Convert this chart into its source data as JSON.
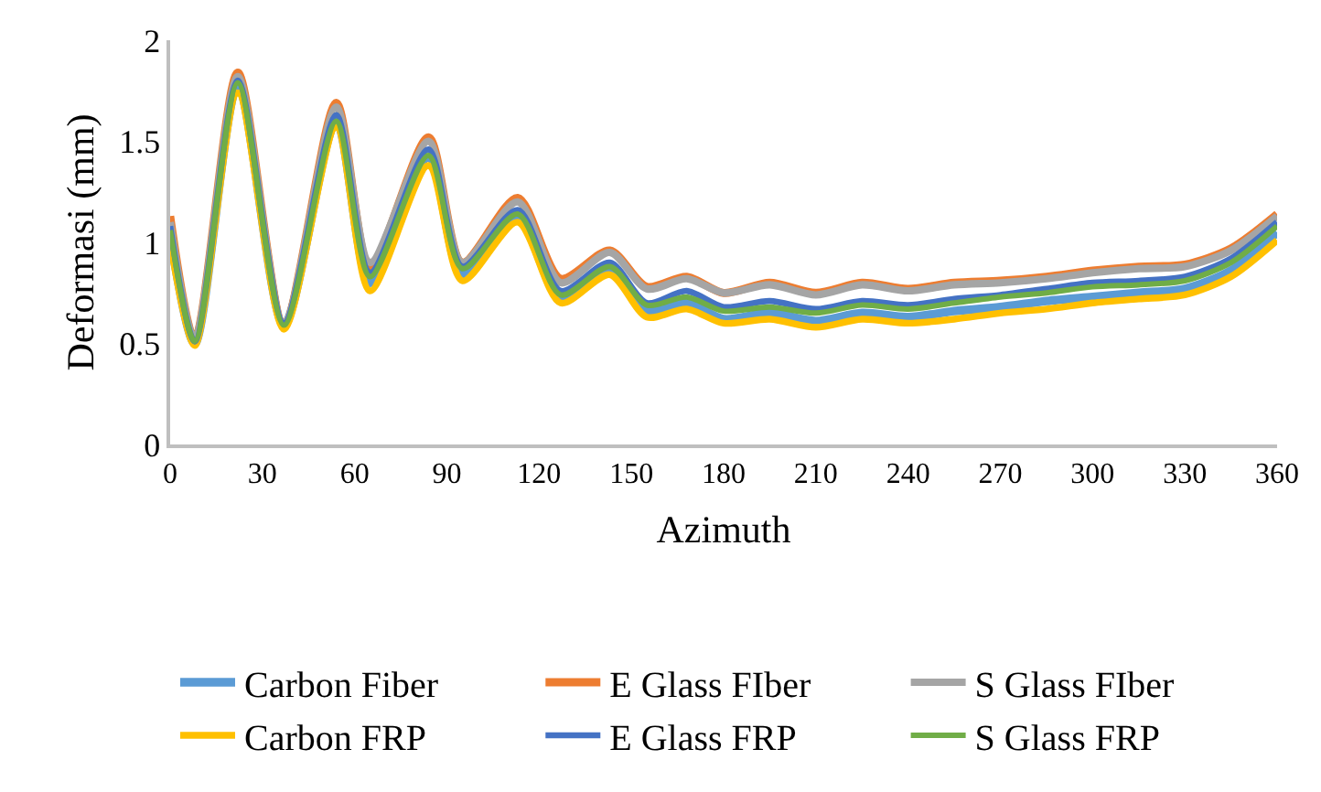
{
  "chart_data": {
    "type": "line",
    "xlabel": "Azimuth",
    "ylabel": "Deformasi (mm)",
    "x": [
      0,
      8,
      22,
      37,
      54,
      65,
      84,
      95,
      113,
      127,
      143,
      155,
      168,
      180,
      195,
      210,
      225,
      240,
      255,
      270,
      285,
      300,
      315,
      330,
      345,
      360
    ],
    "xlim": [
      0,
      360
    ],
    "xticks": [
      0,
      30,
      60,
      90,
      120,
      150,
      180,
      210,
      240,
      270,
      300,
      330,
      360
    ],
    "ylim": [
      0,
      2
    ],
    "yticks": [
      0,
      0.5,
      1,
      1.5,
      2
    ],
    "grid": false,
    "legend": "bottom",
    "marker": "none",
    "line_style": "solid",
    "series": [
      {
        "name": "Carbon Fiber",
        "color": "#5b9bd5",
        "values": [
          1.04,
          0.5,
          1.78,
          0.59,
          1.6,
          0.8,
          1.42,
          0.84,
          1.12,
          0.72,
          0.86,
          0.66,
          0.7,
          0.62,
          0.65,
          0.61,
          0.65,
          0.63,
          0.66,
          0.68,
          0.71,
          0.73,
          0.75,
          0.77,
          0.86,
          1.05
        ]
      },
      {
        "name": "E Glass FIber",
        "color": "#ed7d31",
        "values": [
          1.13,
          0.52,
          1.84,
          0.6,
          1.69,
          0.88,
          1.52,
          0.9,
          1.22,
          0.82,
          0.96,
          0.78,
          0.83,
          0.75,
          0.8,
          0.75,
          0.8,
          0.77,
          0.8,
          0.81,
          0.83,
          0.86,
          0.88,
          0.89,
          0.97,
          1.14
        ]
      },
      {
        "name": "S Glass FIber",
        "color": "#a5a5a5",
        "values": [
          1.1,
          0.52,
          1.82,
          0.6,
          1.67,
          0.9,
          1.5,
          0.9,
          1.2,
          0.8,
          0.95,
          0.77,
          0.82,
          0.75,
          0.79,
          0.74,
          0.79,
          0.76,
          0.79,
          0.8,
          0.82,
          0.85,
          0.87,
          0.88,
          0.96,
          1.13
        ]
      },
      {
        "name": "Carbon FRP",
        "color": "#ffc000",
        "values": [
          1.0,
          0.49,
          1.74,
          0.57,
          1.57,
          0.76,
          1.38,
          0.81,
          1.1,
          0.7,
          0.84,
          0.63,
          0.67,
          0.6,
          0.62,
          0.58,
          0.62,
          0.6,
          0.62,
          0.65,
          0.67,
          0.7,
          0.72,
          0.74,
          0.83,
          1.01
        ]
      },
      {
        "name": "E Glass FRP",
        "color": "#4472c4",
        "values": [
          1.08,
          0.51,
          1.8,
          0.6,
          1.63,
          0.85,
          1.46,
          0.88,
          1.16,
          0.76,
          0.9,
          0.7,
          0.76,
          0.68,
          0.71,
          0.67,
          0.71,
          0.69,
          0.72,
          0.74,
          0.77,
          0.8,
          0.81,
          0.83,
          0.92,
          1.1
        ]
      },
      {
        "name": "S Glass FRP",
        "color": "#70ad47",
        "values": [
          1.06,
          0.51,
          1.79,
          0.59,
          1.6,
          0.83,
          1.43,
          0.87,
          1.14,
          0.74,
          0.88,
          0.69,
          0.73,
          0.66,
          0.68,
          0.65,
          0.69,
          0.67,
          0.7,
          0.73,
          0.75,
          0.78,
          0.79,
          0.81,
          0.9,
          1.08
        ]
      }
    ]
  }
}
